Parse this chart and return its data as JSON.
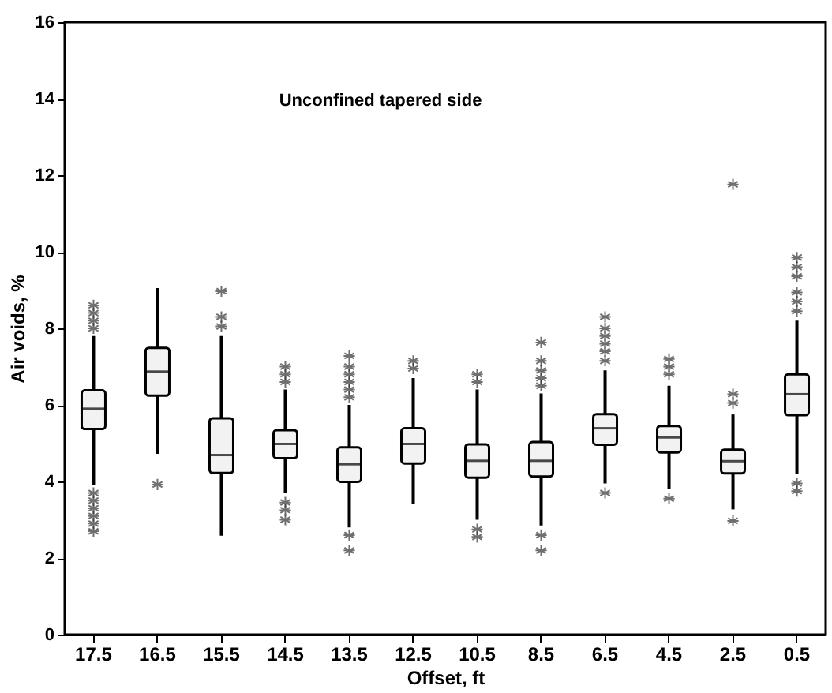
{
  "chart_data": {
    "type": "box",
    "xlabel": "Offset, ft",
    "ylabel": "Air voids, %",
    "annotations": [
      "Unconfined tapered side"
    ],
    "categories": [
      "17.5",
      "16.5",
      "15.5",
      "14.5",
      "13.5",
      "12.5",
      "10.5",
      "8.5",
      "6.5",
      "4.5",
      "2.5",
      "0.5"
    ],
    "ylim": [
      0,
      16
    ],
    "yticks": [
      0,
      2,
      4,
      6,
      8,
      10,
      12,
      14,
      16
    ],
    "grid": false,
    "marker": "star",
    "color": "#f2f2f2",
    "boxes": [
      {
        "low": 3.9,
        "q1": 5.37,
        "median": 5.9,
        "q3": 6.38,
        "high": 7.8,
        "outliers": [
          8.0,
          8.2,
          8.4,
          8.6,
          2.7,
          2.9,
          3.1,
          3.3,
          3.5,
          3.7
        ]
      },
      {
        "low": 4.72,
        "q1": 6.24,
        "median": 6.87,
        "q3": 7.49,
        "high": 9.05,
        "outliers": [
          3.92
        ]
      },
      {
        "low": 2.58,
        "q1": 4.22,
        "median": 4.69,
        "q3": 5.65,
        "high": 7.8,
        "outliers": [
          8.97,
          8.3,
          8.05
        ]
      },
      {
        "low": 3.7,
        "q1": 4.61,
        "median": 4.98,
        "q3": 5.34,
        "high": 6.4,
        "outliers": [
          7.0,
          6.8,
          6.6,
          3.45,
          3.25,
          3.0
        ]
      },
      {
        "low": 2.8,
        "q1": 3.99,
        "median": 4.45,
        "q3": 4.89,
        "high": 6.0,
        "outliers": [
          7.28,
          7.0,
          6.8,
          6.6,
          6.4,
          6.2,
          2.6,
          2.2
        ]
      },
      {
        "low": 3.41,
        "q1": 4.47,
        "median": 4.98,
        "q3": 5.39,
        "high": 6.7,
        "outliers": [
          7.15,
          6.95
        ]
      },
      {
        "low": 3.0,
        "q1": 4.1,
        "median": 4.54,
        "q3": 4.97,
        "high": 6.4,
        "outliers": [
          6.8,
          6.6,
          2.75,
          2.55
        ]
      },
      {
        "low": 2.85,
        "q1": 4.13,
        "median": 4.54,
        "q3": 5.03,
        "high": 6.3,
        "outliers": [
          7.63,
          7.15,
          6.9,
          6.7,
          6.5,
          2.6,
          2.2
        ]
      },
      {
        "low": 3.95,
        "q1": 4.96,
        "median": 5.39,
        "q3": 5.76,
        "high": 6.9,
        "outliers": [
          8.3,
          8.0,
          7.8,
          7.6,
          7.4,
          7.15,
          3.7
        ]
      },
      {
        "low": 3.8,
        "q1": 4.76,
        "median": 5.15,
        "q3": 5.45,
        "high": 6.5,
        "outliers": [
          7.2,
          7.0,
          6.8,
          3.55
        ]
      },
      {
        "low": 3.27,
        "q1": 4.21,
        "median": 4.53,
        "q3": 4.83,
        "high": 5.75,
        "outliers": [
          11.76,
          6.28,
          6.05,
          2.97
        ]
      },
      {
        "low": 4.2,
        "q1": 5.73,
        "median": 6.28,
        "q3": 6.8,
        "high": 8.2,
        "outliers": [
          9.85,
          9.6,
          9.36,
          8.94,
          8.7,
          8.45,
          3.95,
          3.75
        ]
      }
    ]
  }
}
